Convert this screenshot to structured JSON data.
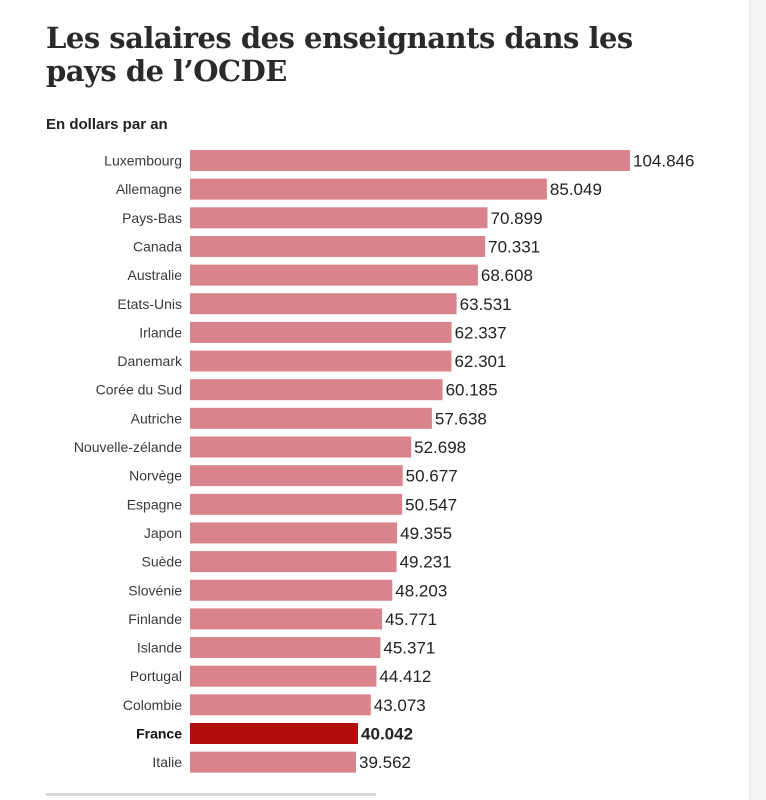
{
  "title": "Les salaires des enseignants dans les pays de l’OCDE",
  "subtitle": "En dollars par an",
  "colors": {
    "bar": "#d9848c",
    "highlight": "#b20e0e",
    "label": "#3a3a3a",
    "value": "#222222"
  },
  "chart_data": {
    "type": "bar",
    "orientation": "horizontal",
    "title": "Les salaires des enseignants dans les pays de l’OCDE",
    "subtitle": "En dollars par an",
    "xlim": [
      0,
      104846
    ],
    "grid": false,
    "highlight": "France",
    "categories": [
      "Luxembourg",
      "Allemagne",
      "Pays-Bas",
      "Canada",
      "Australie",
      "Etats-Unis",
      "Irlande",
      "Danemark",
      "Corée du Sud",
      "Autriche",
      "Nouvelle-zélande",
      "Norvège",
      "Espagne",
      "Japon",
      "Suède",
      "Slovénie",
      "Finlande",
      "Islande",
      "Portugal",
      "Colombie",
      "France",
      "Italie"
    ],
    "values": [
      104846,
      85049,
      70899,
      70331,
      68608,
      63531,
      62337,
      62301,
      60185,
      57638,
      52698,
      50677,
      50547,
      49355,
      49231,
      48203,
      45771,
      45371,
      44412,
      43073,
      40042,
      39562
    ],
    "value_labels": [
      "104.846",
      "85.049",
      "70.899",
      "70.331",
      "68.608",
      "63.531",
      "62.337",
      "62.301",
      "60.185",
      "57.638",
      "52.698",
      "50.677",
      "50.547",
      "49.355",
      "49.231",
      "48.203",
      "45.771",
      "45.371",
      "44.412",
      "43.073",
      "40.042",
      "39.562"
    ]
  }
}
